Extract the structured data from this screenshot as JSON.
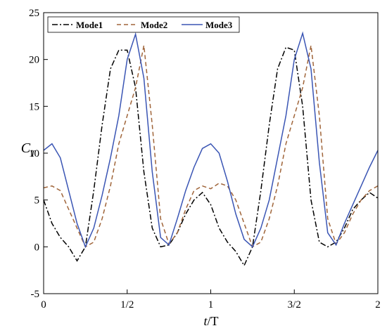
{
  "chart_data": {
    "type": "line",
    "xlabel": {
      "italic": "t",
      "rest": "/T"
    },
    "ylabel": {
      "main": "C",
      "sub": "T"
    },
    "x": [
      0,
      0.05,
      0.1,
      0.15,
      0.2,
      0.25,
      0.3,
      0.35,
      0.4,
      0.45,
      0.5,
      0.55,
      0.6,
      0.65,
      0.7,
      0.75,
      0.8,
      0.85,
      0.9,
      0.95,
      1,
      1.05,
      1.1,
      1.15,
      1.2,
      1.25,
      1.3,
      1.35,
      1.4,
      1.45,
      1.5,
      1.55,
      1.6,
      1.65,
      1.7,
      1.75,
      1.8,
      1.85,
      1.9,
      1.95,
      2
    ],
    "series": [
      {
        "name": "Mode1",
        "color": "#000000",
        "style": "dashdot",
        "values": [
          5,
          2.5,
          1,
          0,
          -1.5,
          0,
          6,
          13,
          19,
          21,
          21,
          17,
          8,
          2,
          0,
          0.2,
          1.5,
          3.5,
          5,
          5.8,
          4.5,
          2,
          0.5,
          -0.5,
          -2,
          0,
          6,
          13,
          19,
          21.3,
          21,
          15,
          5,
          0.5,
          0,
          0.5,
          2,
          4,
          5,
          5.8,
          5.2
        ]
      },
      {
        "name": "Mode2",
        "color": "#a0653a",
        "style": "dashed",
        "values": [
          6.3,
          6.5,
          6,
          4,
          2,
          0,
          0.5,
          3,
          6.5,
          11,
          14,
          17,
          21.5,
          13,
          3,
          0.3,
          1.5,
          4,
          6,
          6.5,
          6.2,
          6.8,
          6.5,
          5,
          2.5,
          0,
          0.5,
          3,
          6.5,
          11,
          14,
          17,
          21.5,
          14,
          3,
          0.3,
          1.5,
          3.5,
          5,
          6,
          6.5
        ]
      },
      {
        "name": "Mode3",
        "color": "#3a55b4",
        "style": "solid",
        "values": [
          10.3,
          11,
          9.5,
          6,
          2.5,
          0,
          2,
          5.5,
          9.5,
          14,
          20,
          22.7,
          18,
          8,
          1,
          0.2,
          3,
          6,
          8.5,
          10.5,
          11,
          10,
          7,
          3.5,
          0.8,
          0,
          2,
          5,
          9.5,
          14,
          20,
          22.8,
          19,
          9,
          1.5,
          0.2,
          2.5,
          4.5,
          6.5,
          8.5,
          10.3
        ]
      }
    ],
    "xlim": [
      0,
      2
    ],
    "xticks": [
      0,
      {
        "value": 0.5,
        "label": "1/2"
      },
      1,
      {
        "value": 1.5,
        "label": "3/2"
      },
      2
    ],
    "ylim": [
      -5,
      25
    ],
    "yticks": [
      -5,
      0,
      5,
      10,
      15,
      20,
      25
    ],
    "legend": "upper-left",
    "grid": false
  }
}
